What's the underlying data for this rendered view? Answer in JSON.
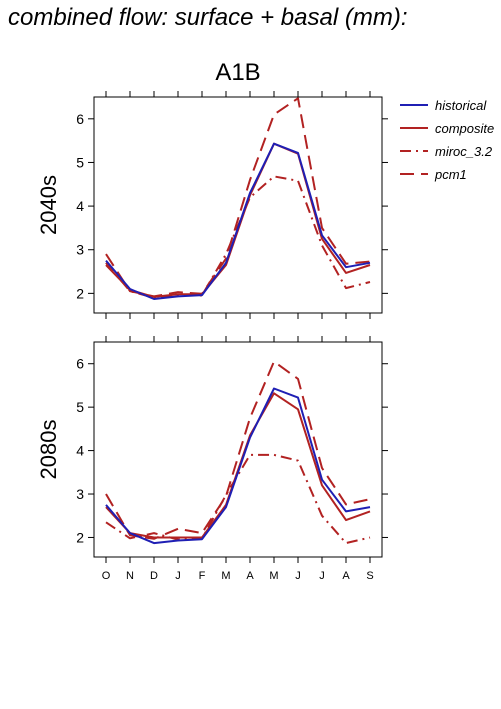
{
  "title": "combined flow: surface + basal (mm):",
  "scenario": "A1B",
  "colors": {
    "historical": "#1f1fb4",
    "composite": "#b22222",
    "miroc_3.2": "#b22222",
    "pcm1": "#b22222"
  },
  "chart_data": [
    {
      "type": "line",
      "panel_label": "2040s",
      "categories": [
        "O",
        "N",
        "D",
        "J",
        "F",
        "M",
        "A",
        "M",
        "J",
        "J",
        "A",
        "S"
      ],
      "ylim": [
        1.55,
        6.5
      ],
      "yticks": [
        2,
        3,
        4,
        5,
        6
      ],
      "series": [
        {
          "name": "historical",
          "style": "solid",
          "values": [
            2.75,
            2.1,
            1.87,
            1.93,
            1.96,
            2.7,
            4.3,
            5.43,
            5.22,
            3.33,
            2.6,
            2.7
          ]
        },
        {
          "name": "composite",
          "style": "solid",
          "values": [
            2.65,
            2.08,
            1.92,
            1.98,
            1.98,
            2.65,
            4.25,
            5.43,
            5.2,
            3.25,
            2.47,
            2.65
          ]
        },
        {
          "name": "miroc_3.2",
          "style": "dashdot",
          "values": [
            2.7,
            2.05,
            1.9,
            1.95,
            1.95,
            2.9,
            4.2,
            4.68,
            4.58,
            3.1,
            2.12,
            2.26
          ]
        },
        {
          "name": "pcm1",
          "style": "dashed",
          "values": [
            2.9,
            2.05,
            1.93,
            2.03,
            1.99,
            2.8,
            4.6,
            6.1,
            6.47,
            3.5,
            2.68,
            2.73
          ]
        }
      ]
    },
    {
      "type": "line",
      "panel_label": "2080s",
      "categories": [
        "O",
        "N",
        "D",
        "J",
        "F",
        "M",
        "A",
        "M",
        "J",
        "J",
        "A",
        "S"
      ],
      "ylim": [
        1.55,
        6.5
      ],
      "yticks": [
        2,
        3,
        4,
        5,
        6
      ],
      "series": [
        {
          "name": "historical",
          "style": "solid",
          "values": [
            2.75,
            2.1,
            1.87,
            1.93,
            1.96,
            2.7,
            4.3,
            5.43,
            5.22,
            3.33,
            2.6,
            2.7
          ]
        },
        {
          "name": "composite",
          "style": "solid",
          "values": [
            2.7,
            2.1,
            2.0,
            2.0,
            2.0,
            2.75,
            4.35,
            5.32,
            4.95,
            3.2,
            2.4,
            2.6
          ]
        },
        {
          "name": "miroc_3.2",
          "style": "dashdot",
          "values": [
            2.35,
            1.98,
            2.1,
            1.95,
            1.97,
            2.98,
            3.9,
            3.9,
            3.77,
            2.5,
            1.87,
            2.0
          ]
        },
        {
          "name": "pcm1",
          "style": "dashed",
          "values": [
            3.0,
            2.05,
            1.97,
            2.2,
            2.1,
            2.95,
            4.75,
            6.05,
            5.65,
            3.6,
            2.76,
            2.88
          ]
        }
      ]
    }
  ],
  "legend": [
    "historical",
    "composite",
    "miroc_3.2",
    "pcm1"
  ]
}
